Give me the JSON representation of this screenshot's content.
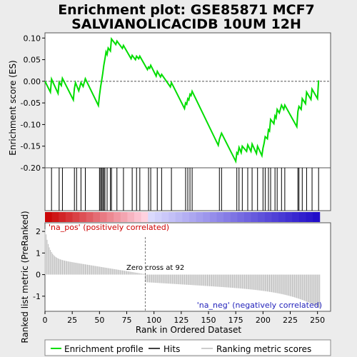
{
  "chart_data": {
    "type": "line",
    "title_line1": "Enrichment plot: GSE85871 MCF7",
    "title_line2": "SALVIANOLICACIDB 10UM 12H",
    "xlabel": "Rank in Ordered Dataset",
    "ylabel_top": "Enrichment score (ES)",
    "ylabel_bottom": "Ranked list metric (PreRanked)",
    "xlim": [
      0,
      262
    ],
    "x_ticks": [
      0,
      25,
      50,
      75,
      100,
      125,
      150,
      175,
      200,
      225,
      250
    ],
    "es_ylim": [
      -0.2,
      0.112
    ],
    "es_ticks": [
      0.1,
      0.05,
      0.0,
      -0.05,
      -0.1,
      -0.15,
      -0.2
    ],
    "es_tick_labels": [
      "0.10",
      "0.05",
      "0.00",
      "-0.05",
      "-0.10",
      "-0.15",
      "-0.20"
    ],
    "rank_ylim": [
      -1.7,
      2.4
    ],
    "rank_ticks": [
      2,
      1,
      0,
      -1
    ],
    "zero_cross": 92,
    "zero_cross_label": "Zero cross at 92",
    "pos_label": "'na_pos' (positively correlated)",
    "neg_label": "'na_neg' (negatively correlated)",
    "legend": [
      "Enrichment profile",
      "Hits",
      "Ranking metric scores"
    ],
    "colors": {
      "es_line": "#00dd00",
      "pos_text": "#cc0000",
      "neg_text": "#2222bb",
      "bar": "#bbbbbb",
      "zero_line": "#777777"
    },
    "hits": [
      6,
      13,
      16,
      27,
      29,
      33,
      37,
      50,
      51,
      52,
      53,
      54,
      55,
      57,
      60,
      61,
      66,
      72,
      80,
      84,
      87,
      95,
      97,
      103,
      107,
      116,
      129,
      131,
      133,
      135,
      160,
      162,
      176,
      178,
      181,
      186,
      190,
      195,
      200,
      202,
      205,
      207,
      211,
      213,
      217,
      220,
      232,
      233,
      236,
      240,
      245,
      251
    ],
    "es_points": [
      [
        0,
        0.0
      ],
      [
        5,
        -0.025
      ],
      [
        6,
        0.005
      ],
      [
        12,
        -0.028
      ],
      [
        13,
        -0.002
      ],
      [
        15,
        -0.01
      ],
      [
        16,
        0.007
      ],
      [
        26,
        -0.043
      ],
      [
        27,
        -0.017
      ],
      [
        28,
        -0.003
      ],
      [
        31,
        -0.022
      ],
      [
        33,
        -0.003
      ],
      [
        35,
        -0.012
      ],
      [
        37,
        0.006
      ],
      [
        49,
        -0.056
      ],
      [
        50,
        -0.033
      ],
      [
        51,
        -0.013
      ],
      [
        52,
        0.002
      ],
      [
        53,
        0.018
      ],
      [
        54,
        0.037
      ],
      [
        55,
        0.052
      ],
      [
        56,
        0.068
      ],
      [
        57,
        0.062
      ],
      [
        58,
        0.077
      ],
      [
        60,
        0.07
      ],
      [
        61,
        0.098
      ],
      [
        65,
        0.085
      ],
      [
        66,
        0.093
      ],
      [
        71,
        0.076
      ],
      [
        72,
        0.083
      ],
      [
        79,
        0.052
      ],
      [
        80,
        0.06
      ],
      [
        83,
        0.05
      ],
      [
        84,
        0.058
      ],
      [
        86,
        0.052
      ],
      [
        87,
        0.058
      ],
      [
        94,
        0.027
      ],
      [
        95,
        0.033
      ],
      [
        96,
        0.03
      ],
      [
        97,
        0.037
      ],
      [
        102,
        0.012
      ],
      [
        103,
        0.023
      ],
      [
        106,
        0.01
      ],
      [
        107,
        0.016
      ],
      [
        115,
        -0.013
      ],
      [
        116,
        -0.003
      ],
      [
        128,
        -0.063
      ],
      [
        129,
        -0.05
      ],
      [
        130,
        -0.053
      ],
      [
        131,
        -0.04
      ],
      [
        132,
        -0.043
      ],
      [
        133,
        -0.03
      ],
      [
        134,
        -0.033
      ],
      [
        135,
        -0.023
      ],
      [
        159,
        -0.148
      ],
      [
        160,
        -0.134
      ],
      [
        162,
        -0.12
      ],
      [
        175,
        -0.185
      ],
      [
        176,
        -0.165
      ],
      [
        177,
        -0.168
      ],
      [
        178,
        -0.153
      ],
      [
        180,
        -0.165
      ],
      [
        181,
        -0.15
      ],
      [
        185,
        -0.162
      ],
      [
        186,
        -0.147
      ],
      [
        189,
        -0.162
      ],
      [
        190,
        -0.145
      ],
      [
        194,
        -0.167
      ],
      [
        195,
        -0.15
      ],
      [
        199,
        -0.172
      ],
      [
        200,
        -0.155
      ],
      [
        201,
        -0.143
      ],
      [
        202,
        -0.128
      ],
      [
        204,
        -0.133
      ],
      [
        205,
        -0.112
      ],
      [
        206,
        -0.115
      ],
      [
        207,
        -0.088
      ],
      [
        210,
        -0.098
      ],
      [
        211,
        -0.08
      ],
      [
        212,
        -0.085
      ],
      [
        213,
        -0.065
      ],
      [
        215,
        -0.073
      ],
      [
        217,
        -0.055
      ],
      [
        219,
        -0.065
      ],
      [
        220,
        -0.055
      ],
      [
        231,
        -0.105
      ],
      [
        232,
        -0.07
      ],
      [
        233,
        -0.058
      ],
      [
        235,
        -0.065
      ],
      [
        236,
        -0.04
      ],
      [
        239,
        -0.052
      ],
      [
        240,
        -0.025
      ],
      [
        244,
        -0.042
      ],
      [
        245,
        -0.018
      ],
      [
        250,
        -0.04
      ],
      [
        251,
        0.002
      ]
    ]
  }
}
